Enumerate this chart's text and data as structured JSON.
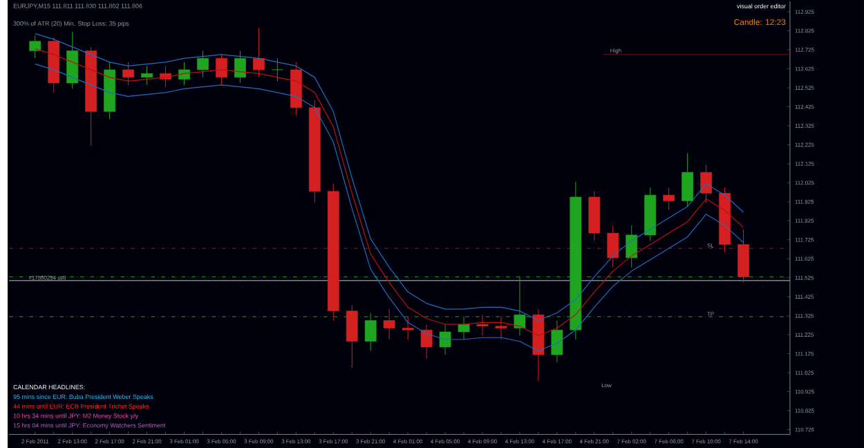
{
  "chart_data": {
    "type": "candlestick",
    "title": "EURJPY,M15 111.811 111.830 111.802 111.806",
    "subtitle": "300% of ATR (20)   Min. Stop Loss: 35 pips",
    "categories": [
      "2 Feb 2011",
      null,
      "2 Feb 13:00",
      null,
      "2 Feb 17:00",
      null,
      "2 Feb 21:00",
      null,
      "3 Feb 01:00",
      null,
      "3 Feb 05:00",
      null,
      "3 Feb 09:00",
      null,
      "3 Feb 13:00",
      null,
      "3 Feb 17:00",
      null,
      "3 Feb 21:00",
      null,
      "4 Feb 01:00",
      null,
      "4 Feb 05:00",
      null,
      "4 Feb 09:00",
      null,
      "4 Feb 13:00",
      null,
      "4 Feb 17:00",
      null,
      "4 Feb 21:00",
      null,
      "7 Feb 02:00",
      null,
      "7 Feb 06:00",
      null,
      "7 Feb 10:00",
      null,
      "7 Feb 14:00"
    ],
    "ohlc": [
      [
        112.72,
        112.8,
        112.68,
        112.77
      ],
      [
        112.77,
        112.79,
        112.5,
        112.55
      ],
      [
        112.55,
        112.82,
        112.52,
        112.72
      ],
      [
        112.72,
        112.74,
        112.22,
        112.4
      ],
      [
        112.4,
        112.66,
        112.36,
        112.62
      ],
      [
        112.62,
        112.66,
        112.54,
        112.58
      ],
      [
        112.58,
        112.64,
        112.54,
        112.6
      ],
      [
        112.6,
        112.64,
        112.53,
        112.57
      ],
      [
        112.57,
        112.66,
        112.54,
        112.62
      ],
      [
        112.62,
        112.72,
        112.58,
        112.68
      ],
      [
        112.68,
        112.7,
        112.54,
        112.58
      ],
      [
        112.58,
        112.72,
        112.55,
        112.68
      ],
      [
        112.68,
        112.84,
        112.58,
        112.62
      ],
      [
        112.62,
        112.68,
        112.56,
        112.62
      ],
      [
        112.62,
        112.66,
        112.38,
        112.42
      ],
      [
        112.42,
        112.46,
        111.92,
        111.98
      ],
      [
        111.98,
        112.02,
        111.3,
        111.35
      ],
      [
        111.35,
        111.38,
        111.05,
        111.19
      ],
      [
        111.19,
        111.34,
        111.14,
        111.3
      ],
      [
        111.3,
        111.36,
        111.2,
        111.26
      ],
      [
        111.26,
        111.32,
        111.2,
        111.25
      ],
      [
        111.25,
        111.28,
        111.1,
        111.16
      ],
      [
        111.16,
        111.28,
        111.12,
        111.24
      ],
      [
        111.24,
        111.32,
        111.2,
        111.28
      ],
      [
        111.28,
        111.33,
        111.22,
        111.27
      ],
      [
        111.27,
        111.32,
        111.2,
        111.26
      ],
      [
        111.26,
        111.53,
        111.22,
        111.33
      ],
      [
        111.33,
        111.36,
        110.98,
        111.12
      ],
      [
        111.12,
        111.3,
        111.08,
        111.25
      ],
      [
        111.25,
        112.03,
        111.2,
        111.95
      ],
      [
        111.95,
        111.98,
        111.72,
        111.76
      ],
      [
        111.76,
        111.8,
        111.58,
        111.63
      ],
      [
        111.63,
        111.8,
        111.58,
        111.75
      ],
      [
        111.75,
        112.0,
        111.72,
        111.96
      ],
      [
        111.96,
        112.0,
        111.88,
        111.93
      ],
      [
        111.93,
        112.18,
        111.9,
        112.08
      ],
      [
        112.08,
        112.12,
        111.92,
        111.97
      ],
      [
        111.97,
        112.0,
        111.66,
        111.7
      ],
      [
        111.7,
        111.78,
        111.5,
        111.53
      ]
    ],
    "series": [
      {
        "type": "line",
        "color": "#1f6fbf",
        "values": [
          112.81,
          112.78,
          112.74,
          112.7,
          112.66,
          112.64,
          112.65,
          112.66,
          112.68,
          112.69,
          112.7,
          112.69,
          112.68,
          112.66,
          112.64,
          112.58,
          112.4,
          112.05,
          111.73,
          111.58,
          111.45,
          111.39,
          111.36,
          111.36,
          111.37,
          111.37,
          111.35,
          111.3,
          111.34,
          111.41,
          111.53,
          111.64,
          111.72,
          111.78,
          111.84,
          111.9,
          112.02,
          111.96,
          111.87
        ]
      },
      {
        "type": "line",
        "color": "#c01010",
        "values": [
          112.73,
          112.7,
          112.66,
          112.62,
          112.58,
          112.56,
          112.57,
          112.58,
          112.6,
          112.61,
          112.62,
          112.61,
          112.6,
          112.58,
          112.56,
          112.5,
          112.32,
          111.97,
          111.65,
          111.5,
          111.37,
          111.31,
          111.28,
          111.28,
          111.29,
          111.29,
          111.27,
          111.22,
          111.26,
          111.33,
          111.45,
          111.56,
          111.64,
          111.7,
          111.76,
          111.82,
          111.94,
          111.88,
          111.79
        ]
      },
      {
        "type": "line",
        "color": "#1f6fbf",
        "values": [
          112.65,
          112.62,
          112.58,
          112.54,
          112.5,
          112.48,
          112.49,
          112.5,
          112.52,
          112.53,
          112.54,
          112.53,
          112.52,
          112.5,
          112.48,
          112.42,
          112.24,
          111.89,
          111.57,
          111.42,
          111.29,
          111.23,
          111.2,
          111.2,
          111.21,
          111.21,
          111.19,
          111.14,
          111.18,
          111.25,
          111.37,
          111.48,
          111.56,
          111.62,
          111.68,
          111.74,
          111.86,
          111.8,
          111.71
        ]
      }
    ],
    "ref_lines": [
      {
        "axis": "y",
        "value": 112.7,
        "label": "High",
        "color": "#7a1010",
        "line_style": "solid"
      },
      {
        "axis": "y",
        "value": 111.68,
        "label": "SL",
        "color": "#a01818",
        "line_style": "dashed"
      },
      {
        "axis": "y",
        "value": 111.53,
        "color": "#2a9a2a",
        "line_style": "dashed"
      },
      {
        "axis": "y",
        "value": 111.51,
        "label": "#17580254 sell",
        "color": "#c8c8c8",
        "line_style": "solid"
      },
      {
        "axis": "y",
        "value": 111.32,
        "label": "TP",
        "color": "#2a9a2a",
        "line_style": "dashed"
      }
    ],
    "annotations": [
      "visual order editor",
      "Candle: 12:23",
      "CALENDAR HEADLINES:",
      "95 mins since EUR: Buba President Weber Speaks",
      "44 mins until EUR: ECB President Trichet Speaks",
      "10 hrs 34 mins until JPY: M2 Money Stock y/y",
      "15 hrs 04 mins until JPY: Economy Watchers Sentiment",
      "Low"
    ],
    "ylim": [
      110.7,
      112.98
    ],
    "yticks": [
      110.725,
      110.825,
      110.925,
      111.025,
      111.125,
      111.225,
      111.325,
      111.425,
      111.525,
      111.625,
      111.725,
      111.825,
      111.925,
      112.025,
      112.125,
      112.225,
      112.325,
      112.425,
      112.525,
      112.625,
      112.725,
      112.825,
      112.925
    ],
    "grid": false
  }
}
